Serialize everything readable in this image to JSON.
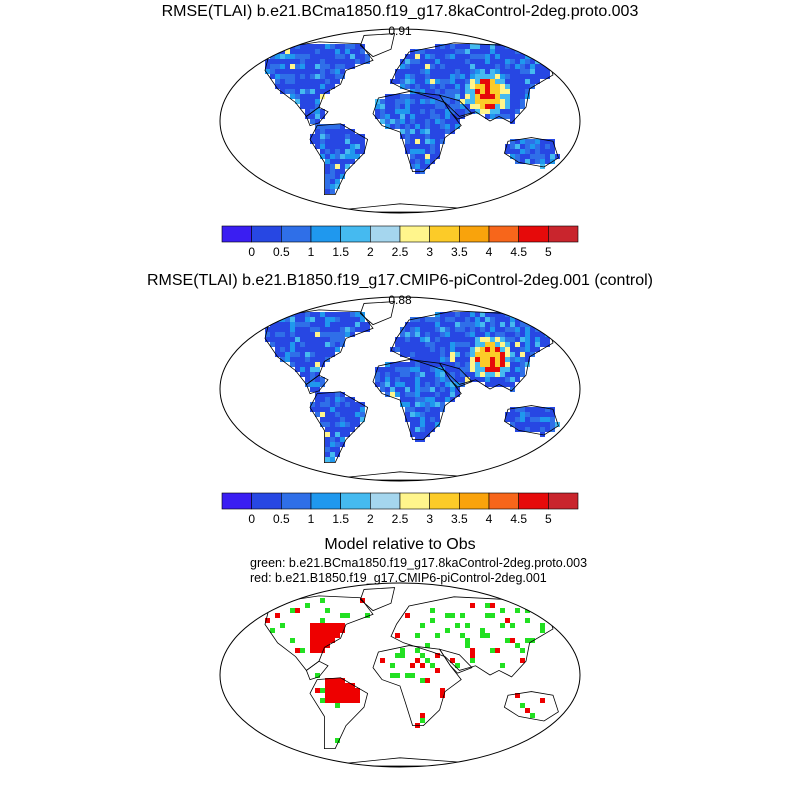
{
  "panels": [
    {
      "title": "RMSE(TLAI) b.e21.BCma1850.f19_g17.8kaControl-2deg.proto.003",
      "value": "0.91"
    },
    {
      "title": "RMSE(TLAI) b.e21.B1850.f19_g17.CMIP6-piControl-2deg.001 (control)",
      "value": "0.88"
    }
  ],
  "colorbar": {
    "colors": [
      "#3a1ef2",
      "#2747e3",
      "#2f6fe8",
      "#1f98ee",
      "#45baf0",
      "#a5d6ee",
      "#fff58c",
      "#fccb28",
      "#f9a30c",
      "#f7661b",
      "#e60a0a",
      "#c9252d"
    ],
    "labels": [
      "0",
      "0.5",
      "1",
      "1.5",
      "2",
      "2.5",
      "3",
      "3.5",
      "4",
      "4.5",
      "5"
    ]
  },
  "comparison": {
    "title": "Model relative to Obs",
    "green_label": "green: b.e21.BCma1850.f19_g17.8kaControl-2deg.proto.003",
    "red_label": "red: b.e21.B1850.f19_g17.CMIP6-piControl-2deg.001",
    "colors": {
      "green": "#22e022",
      "red": "#ee0000"
    }
  }
}
